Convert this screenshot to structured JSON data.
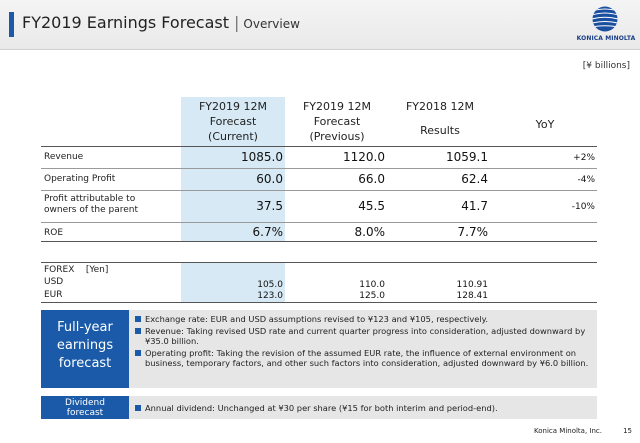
{
  "header": {
    "title": "FY2019 Earnings Forecast",
    "separator": "|",
    "subtitle": "Overview",
    "logo_text": "KONICA MINOLTA"
  },
  "unit": "[¥ billions]",
  "columns": {
    "col1": [
      "FY2019 12M",
      "Forecast",
      "(Current)"
    ],
    "col2": [
      "FY2019 12M",
      "Forecast",
      "(Previous)"
    ],
    "col3_top": "FY2018 12M",
    "col3_bottom": "Results",
    "col4": "YoY"
  },
  "rows": [
    {
      "label": [
        "Revenue"
      ],
      "current": "1085.0",
      "previous": "1120.0",
      "results": "1059.1",
      "yoy": "+2%"
    },
    {
      "label": [
        "Operating Profit"
      ],
      "current": "60.0",
      "previous": "66.0",
      "results": "62.4",
      "yoy": "-4%"
    },
    {
      "label": [
        "Profit attributable to",
        "owners of the parent"
      ],
      "current": "37.5",
      "previous": "45.5",
      "results": "41.7",
      "yoy": "-10%"
    },
    {
      "label": [
        "ROE"
      ],
      "current": "6.7%",
      "previous": "8.0%",
      "results": "7.7%",
      "yoy": ""
    }
  ],
  "forex": {
    "header": "FOREX",
    "unit": "[Yen]",
    "rows": [
      {
        "label": "USD",
        "current": "105.0",
        "previous": "110.0",
        "results": "110.91"
      },
      {
        "label": "EUR",
        "current": "123.0",
        "previous": "125.0",
        "results": "128.41"
      }
    ]
  },
  "full_year": {
    "tag": [
      "Full-year",
      "earnings",
      "forecast"
    ],
    "bullets": [
      "Exchange rate: EUR and USD assumptions revised to ¥123 and ¥105, respectively.",
      "Revenue: Taking revised USD rate and current quarter progress into consideration, adjusted downward by ¥35.0 billion.",
      "Operating profit: Taking the revision of the assumed EUR rate, the influence of external environment on business, temporary factors, and other such factors into consideration, adjusted downward by ¥6.0 billion."
    ]
  },
  "dividend": {
    "tag": [
      "Dividend",
      "forecast"
    ],
    "bullets": [
      "Annual dividend: Unchanged at ¥30 per share (¥15 for both interim and period-end)."
    ]
  },
  "footer": {
    "company": "Konica Minolta, Inc.",
    "page": "15"
  },
  "colors": {
    "accent": "#1a5aa8",
    "highlight": "#d7e9f5",
    "box": "#e6e6e6"
  }
}
